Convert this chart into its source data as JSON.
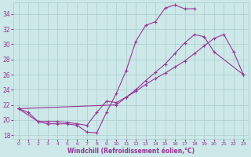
{
  "xlabel": "Windchill (Refroidissement éolien,°C)",
  "xlim": [
    -0.5,
    23.5
  ],
  "ylim": [
    17.5,
    35.5
  ],
  "xticks": [
    0,
    1,
    2,
    3,
    4,
    5,
    6,
    7,
    8,
    9,
    10,
    11,
    12,
    13,
    14,
    15,
    16,
    17,
    18,
    19,
    20,
    21,
    22,
    23
  ],
  "yticks": [
    18,
    20,
    22,
    24,
    26,
    28,
    30,
    32,
    34
  ],
  "bg_color": "#cce8e8",
  "grid_color": "#aacccc",
  "line_color": "#993399",
  "series": [
    {
      "x": [
        0,
        1,
        2,
        3,
        4,
        5,
        6,
        7,
        8,
        9,
        10,
        11,
        12,
        13,
        14,
        15,
        16,
        17,
        18
      ],
      "y": [
        21.5,
        21.0,
        19.8,
        19.5,
        19.5,
        19.5,
        19.3,
        18.4,
        18.3,
        21.0,
        23.5,
        26.5,
        30.4,
        32.5,
        33.0,
        34.8,
        35.2,
        34.7,
        34.7
      ]
    },
    {
      "x": [
        0,
        10,
        11,
        12,
        13,
        14,
        15,
        16,
        17,
        18,
        19,
        20,
        23
      ],
      "y": [
        21.5,
        22.0,
        23.0,
        24.0,
        25.2,
        26.3,
        27.4,
        28.8,
        30.2,
        31.3,
        31.0,
        29.0,
        26.0
      ]
    },
    {
      "x": [
        0,
        2,
        3,
        4,
        5,
        6,
        7,
        8,
        9,
        10,
        11,
        12,
        13,
        14,
        15,
        16,
        17,
        18,
        19,
        20,
        21,
        22,
        23
      ],
      "y": [
        21.5,
        19.8,
        19.8,
        19.8,
        19.7,
        19.5,
        19.3,
        21.0,
        22.5,
        22.3,
        23.0,
        23.8,
        24.7,
        25.5,
        26.2,
        27.0,
        27.8,
        28.8,
        29.8,
        30.8,
        31.3,
        29.0,
        26.0
      ]
    }
  ]
}
